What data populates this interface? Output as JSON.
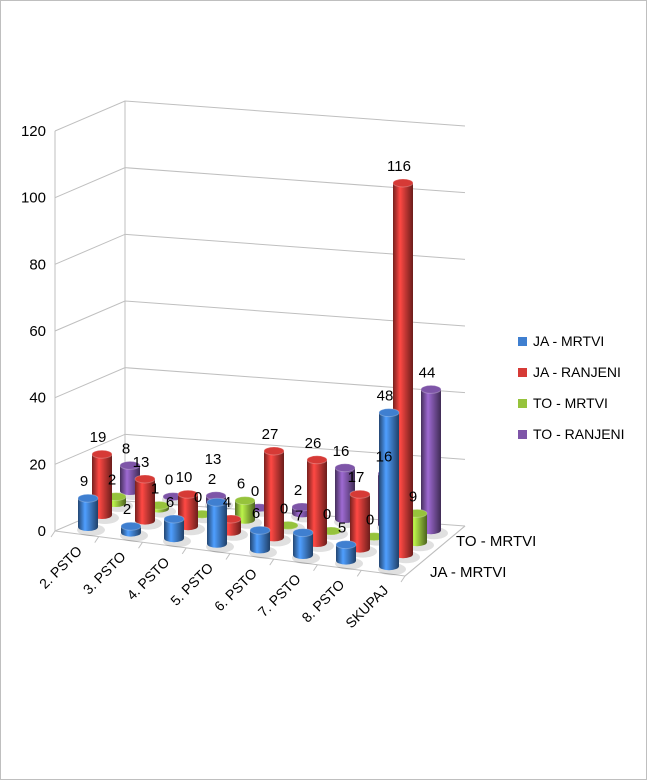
{
  "chart_data": {
    "type": "bar",
    "style": "3d-cylinder",
    "title": "",
    "categories": [
      "2. PSTO",
      "3. PSTO",
      "4. PSTO",
      "5. PSTO",
      "6. PSTO",
      "7. PSTO",
      "8. PSTO",
      "SKUPAJ"
    ],
    "series": [
      {
        "name": "JA - MRTVI",
        "color": "#3f7fd0",
        "values": [
          9,
          2,
          6,
          13,
          6,
          7,
          5,
          48
        ]
      },
      {
        "name": "JA - RANJENI",
        "color": "#d63a36",
        "values": [
          19,
          13,
          10,
          4,
          27,
          26,
          17,
          116
        ]
      },
      {
        "name": "TO - MRTVI",
        "color": "#96c33c",
        "values": [
          2,
          1,
          0,
          6,
          0,
          0,
          0,
          9
        ]
      },
      {
        "name": "TO - RANJENI",
        "color": "#7e55a8",
        "values": [
          8,
          0,
          2,
          0,
          2,
          16,
          16,
          44
        ]
      }
    ],
    "depth_axis_labels": [
      "JA - MRTVI",
      "TO - MRTVI"
    ],
    "ylim": [
      0,
      120
    ],
    "yticks": [
      0,
      20,
      40,
      60,
      80,
      100,
      120
    ],
    "grid": true,
    "legend": "right",
    "data_labels": true
  }
}
